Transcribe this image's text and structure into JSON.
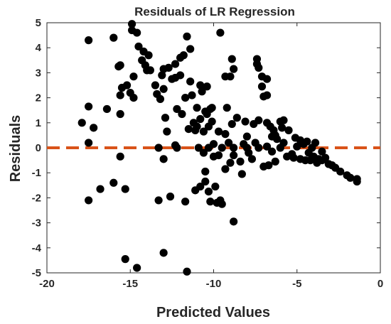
{
  "chart_data": {
    "type": "scatter",
    "title": "Residuals of LR Regression",
    "xlabel": "Predicted Values",
    "ylabel": "Residuals",
    "xlim": [
      -20,
      0
    ],
    "ylim": [
      -5,
      5
    ],
    "x_ticks": [
      -20,
      -15,
      -10,
      -5,
      0
    ],
    "y_ticks": [
      -5,
      -4,
      -3,
      -2,
      -1,
      0,
      1,
      2,
      3,
      4,
      5
    ],
    "grid": false,
    "legend": "none",
    "point_color": "#000000",
    "reference_line": {
      "y": 0,
      "style": "dashed",
      "color": "#d95319"
    },
    "points": [
      [
        -17.9,
        1.0
      ],
      [
        -17.5,
        4.3
      ],
      [
        -17.5,
        1.65
      ],
      [
        -17.5,
        0.2
      ],
      [
        -17.5,
        -2.1
      ],
      [
        -17.2,
        0.8
      ],
      [
        -16.8,
        -1.65
      ],
      [
        -16.4,
        1.55
      ],
      [
        -16.0,
        4.4
      ],
      [
        -16.0,
        -1.4
      ],
      [
        -15.7,
        3.25
      ],
      [
        -15.6,
        3.3
      ],
      [
        -15.6,
        2.1
      ],
      [
        -15.6,
        1.35
      ],
      [
        -15.6,
        -0.35
      ],
      [
        -15.5,
        2.4
      ],
      [
        -15.3,
        -1.65
      ],
      [
        -15.3,
        -4.45
      ],
      [
        -15.2,
        2.5
      ],
      [
        -15.0,
        2.2
      ],
      [
        -14.9,
        4.95
      ],
      [
        -14.9,
        4.7
      ],
      [
        -14.8,
        2.85
      ],
      [
        -14.8,
        2.0
      ],
      [
        -14.6,
        4.6
      ],
      [
        -14.5,
        4.05
      ],
      [
        -14.3,
        3.5
      ],
      [
        -14.6,
        -4.8
      ],
      [
        -14.2,
        3.85
      ],
      [
        -14.1,
        3.3
      ],
      [
        -14.0,
        3.1
      ],
      [
        -13.9,
        3.7
      ],
      [
        -13.8,
        3.1
      ],
      [
        -13.5,
        2.5
      ],
      [
        -13.4,
        2.15
      ],
      [
        -13.3,
        0.0
      ],
      [
        -13.3,
        -2.1
      ],
      [
        -13.2,
        1.95
      ],
      [
        -13.1,
        2.9
      ],
      [
        -13.0,
        3.15
      ],
      [
        -13.0,
        2.35
      ],
      [
        -13.0,
        -0.45
      ],
      [
        -13.0,
        -4.2
      ],
      [
        -12.9,
        1.2
      ],
      [
        -12.8,
        0.65
      ],
      [
        -12.7,
        3.2
      ],
      [
        -12.6,
        -1.95
      ],
      [
        -12.5,
        2.75
      ],
      [
        -12.3,
        3.35
      ],
      [
        -12.3,
        2.8
      ],
      [
        -12.3,
        0.1
      ],
      [
        -12.2,
        1.55
      ],
      [
        -12.2,
        0.0
      ],
      [
        -12.0,
        3.6
      ],
      [
        -12.0,
        2.9
      ],
      [
        -11.9,
        1.35
      ],
      [
        -11.8,
        3.7
      ],
      [
        -11.7,
        2.0
      ],
      [
        -11.7,
        -2.15
      ],
      [
        -11.6,
        4.45
      ],
      [
        -11.6,
        -4.95
      ],
      [
        -11.5,
        0.75
      ],
      [
        -11.4,
        3.95
      ],
      [
        -11.4,
        2.65
      ],
      [
        -11.3,
        2.1
      ],
      [
        -11.2,
        1.0
      ],
      [
        -11.1,
        0.7
      ],
      [
        -11.1,
        -1.7
      ],
      [
        -11.0,
        1.6
      ],
      [
        -11.0,
        0.85
      ],
      [
        -10.9,
        0.0
      ],
      [
        -10.8,
        2.5
      ],
      [
        -10.8,
        1.15
      ],
      [
        -10.8,
        -1.55
      ],
      [
        -10.7,
        2.25
      ],
      [
        -10.6,
        0.65
      ],
      [
        -10.6,
        -0.2
      ],
      [
        -10.5,
        1.45
      ],
      [
        -10.5,
        -0.95
      ],
      [
        -10.5,
        -1.35
      ],
      [
        -10.4,
        2.45
      ],
      [
        -10.4,
        1.35
      ],
      [
        -10.3,
        0.85
      ],
      [
        -10.3,
        0.0
      ],
      [
        -10.3,
        -1.75
      ],
      [
        -10.2,
        1.55
      ],
      [
        -10.2,
        -2.15
      ],
      [
        -10.1,
        1.6
      ],
      [
        -10.1,
        1.05
      ],
      [
        -10.0,
        0.15
      ],
      [
        -10.0,
        -0.35
      ],
      [
        -9.9,
        -1.55
      ],
      [
        -9.8,
        -2.2
      ],
      [
        -9.7,
        0.65
      ],
      [
        -9.7,
        -0.3
      ],
      [
        -9.6,
        4.6
      ],
      [
        -9.6,
        -2.1
      ],
      [
        -9.5,
        0.0
      ],
      [
        -9.5,
        -2.25
      ],
      [
        -9.3,
        2.85
      ],
      [
        -9.3,
        0.55
      ],
      [
        -9.3,
        -0.85
      ],
      [
        -9.2,
        1.6
      ],
      [
        -9.1,
        0.2
      ],
      [
        -9.0,
        2.85
      ],
      [
        -9.0,
        -0.6
      ],
      [
        -8.9,
        3.55
      ],
      [
        -8.9,
        0.95
      ],
      [
        -8.8,
        3.15
      ],
      [
        -8.8,
        0.0
      ],
      [
        -8.8,
        -0.3
      ],
      [
        -8.8,
        -2.95
      ],
      [
        -8.6,
        1.2
      ],
      [
        -8.4,
        -0.55
      ],
      [
        -8.3,
        -1.05
      ],
      [
        -8.2,
        0.15
      ],
      [
        -8.1,
        1.05
      ],
      [
        -8.0,
        0.45
      ],
      [
        -8.0,
        0.0
      ],
      [
        -7.9,
        -0.2
      ],
      [
        -7.7,
        -0.45
      ],
      [
        -7.6,
        0.95
      ],
      [
        -7.5,
        0.2
      ],
      [
        -7.4,
        3.55
      ],
      [
        -7.4,
        3.35
      ],
      [
        -7.3,
        3.2
      ],
      [
        -7.3,
        1.1
      ],
      [
        -7.3,
        0.0
      ],
      [
        -7.1,
        2.85
      ],
      [
        -7.1,
        2.45
      ],
      [
        -7.0,
        2.05
      ],
      [
        -7.0,
        -0.75
      ],
      [
        -6.8,
        2.75
      ],
      [
        -6.8,
        2.1
      ],
      [
        -6.8,
        1.0
      ],
      [
        -6.8,
        0.05
      ],
      [
        -6.7,
        -0.7
      ],
      [
        -6.6,
        0.85
      ],
      [
        -6.5,
        0.45
      ],
      [
        -6.5,
        -0.15
      ],
      [
        -6.4,
        0.7
      ],
      [
        -6.3,
        0.5
      ],
      [
        -6.3,
        -0.55
      ],
      [
        -6.2,
        0.35
      ],
      [
        -6.0,
        1.05
      ],
      [
        -6.0,
        0.0
      ],
      [
        -5.9,
        0.8
      ],
      [
        -5.8,
        1.1
      ],
      [
        -5.8,
        0.2
      ],
      [
        -5.6,
        -0.35
      ],
      [
        -5.5,
        0.7
      ],
      [
        -5.3,
        -0.25
      ],
      [
        -5.2,
        -0.4
      ],
      [
        -5.1,
        0.4
      ],
      [
        -5.0,
        0.05
      ],
      [
        -4.8,
        0.3
      ],
      [
        -4.8,
        -0.45
      ],
      [
        -4.6,
        0.15
      ],
      [
        -4.5,
        -0.5
      ],
      [
        -4.4,
        0.25
      ],
      [
        -4.3,
        -0.2
      ],
      [
        -4.2,
        -0.5
      ],
      [
        -4.1,
        0.0
      ],
      [
        -4.0,
        -0.35
      ],
      [
        -3.9,
        0.2
      ],
      [
        -3.8,
        -0.6
      ],
      [
        -3.7,
        -0.45
      ],
      [
        -3.5,
        -0.15
      ],
      [
        -3.5,
        -0.5
      ],
      [
        -3.3,
        -0.4
      ],
      [
        -3.1,
        -0.65
      ],
      [
        -2.9,
        -0.7
      ],
      [
        -2.7,
        -0.8
      ],
      [
        -2.4,
        -0.95
      ],
      [
        -2.0,
        -1.1
      ],
      [
        -1.8,
        -1.2
      ],
      [
        -1.4,
        -1.25
      ],
      [
        -1.4,
        -1.35
      ]
    ]
  }
}
